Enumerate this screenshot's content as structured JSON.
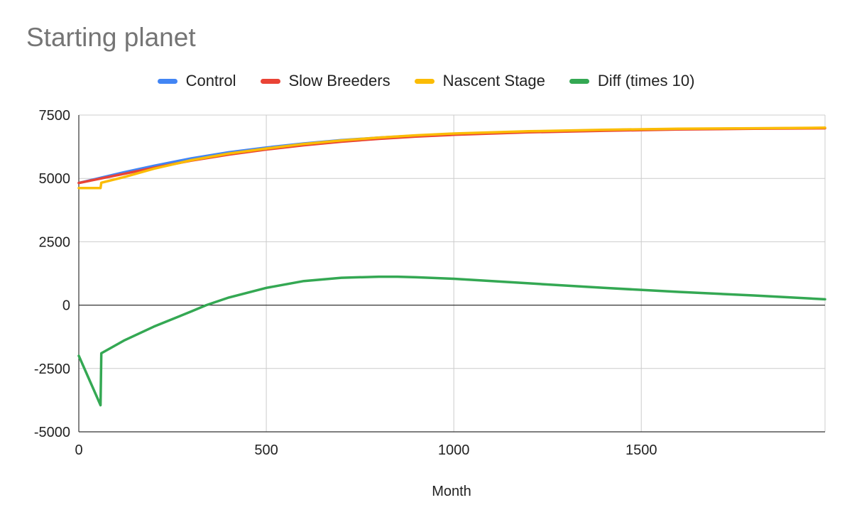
{
  "chart_data": {
    "type": "line",
    "title": "Starting planet",
    "xlabel": "Month",
    "ylabel": "",
    "xlim": [
      0,
      1990
    ],
    "ylim": [
      -5000,
      7500
    ],
    "x_ticks": [
      "0",
      "500",
      "1000",
      "1500"
    ],
    "x_tick_values": [
      0,
      500,
      1000,
      1500
    ],
    "y_ticks": [
      "7500",
      "5000",
      "2500",
      "0",
      "-2500",
      "-5000"
    ],
    "y_tick_values": [
      7500,
      5000,
      2500,
      0,
      -2500,
      -5000
    ],
    "grid": true,
    "legend_position": "top",
    "series": [
      {
        "name": "Control",
        "color": "#4285F4",
        "x": [
          0,
          60,
          120,
          200,
          300,
          400,
          500,
          600,
          700,
          800,
          900,
          1000,
          1200,
          1400,
          1600,
          1800,
          1990
        ],
        "values": [
          4820,
          5030,
          5240,
          5500,
          5790,
          6030,
          6220,
          6380,
          6510,
          6610,
          6690,
          6760,
          6850,
          6910,
          6950,
          6970,
          6990
        ]
      },
      {
        "name": "Slow Breeders",
        "color": "#EA4335",
        "x": [
          0,
          60,
          120,
          200,
          300,
          400,
          500,
          600,
          700,
          800,
          900,
          1000,
          1200,
          1400,
          1600,
          1800,
          1990
        ],
        "values": [
          4820,
          5000,
          5180,
          5420,
          5700,
          5940,
          6140,
          6310,
          6450,
          6560,
          6650,
          6720,
          6820,
          6880,
          6930,
          6960,
          6980
        ]
      },
      {
        "name": "Nascent Stage",
        "color": "#FBBC04",
        "x": [
          0,
          58,
          60,
          120,
          200,
          300,
          400,
          500,
          600,
          700,
          800,
          900,
          1000,
          1200,
          1400,
          1600,
          1800,
          1990
        ],
        "values": [
          4620,
          4620,
          4830,
          5050,
          5380,
          5720,
          5980,
          6180,
          6360,
          6500,
          6610,
          6700,
          6770,
          6860,
          6920,
          6960,
          6980,
          7000
        ]
      },
      {
        "name": "Diff (times 10)",
        "color": "#34A853",
        "x": [
          0,
          58,
          60,
          120,
          200,
          300,
          340,
          400,
          500,
          600,
          700,
          800,
          850,
          900,
          1000,
          1200,
          1400,
          1600,
          1800,
          1990
        ],
        "values": [
          -2000,
          -3950,
          -1900,
          -1400,
          -850,
          -250,
          0,
          300,
          680,
          950,
          1080,
          1120,
          1120,
          1100,
          1040,
          860,
          680,
          520,
          380,
          230
        ]
      }
    ]
  }
}
